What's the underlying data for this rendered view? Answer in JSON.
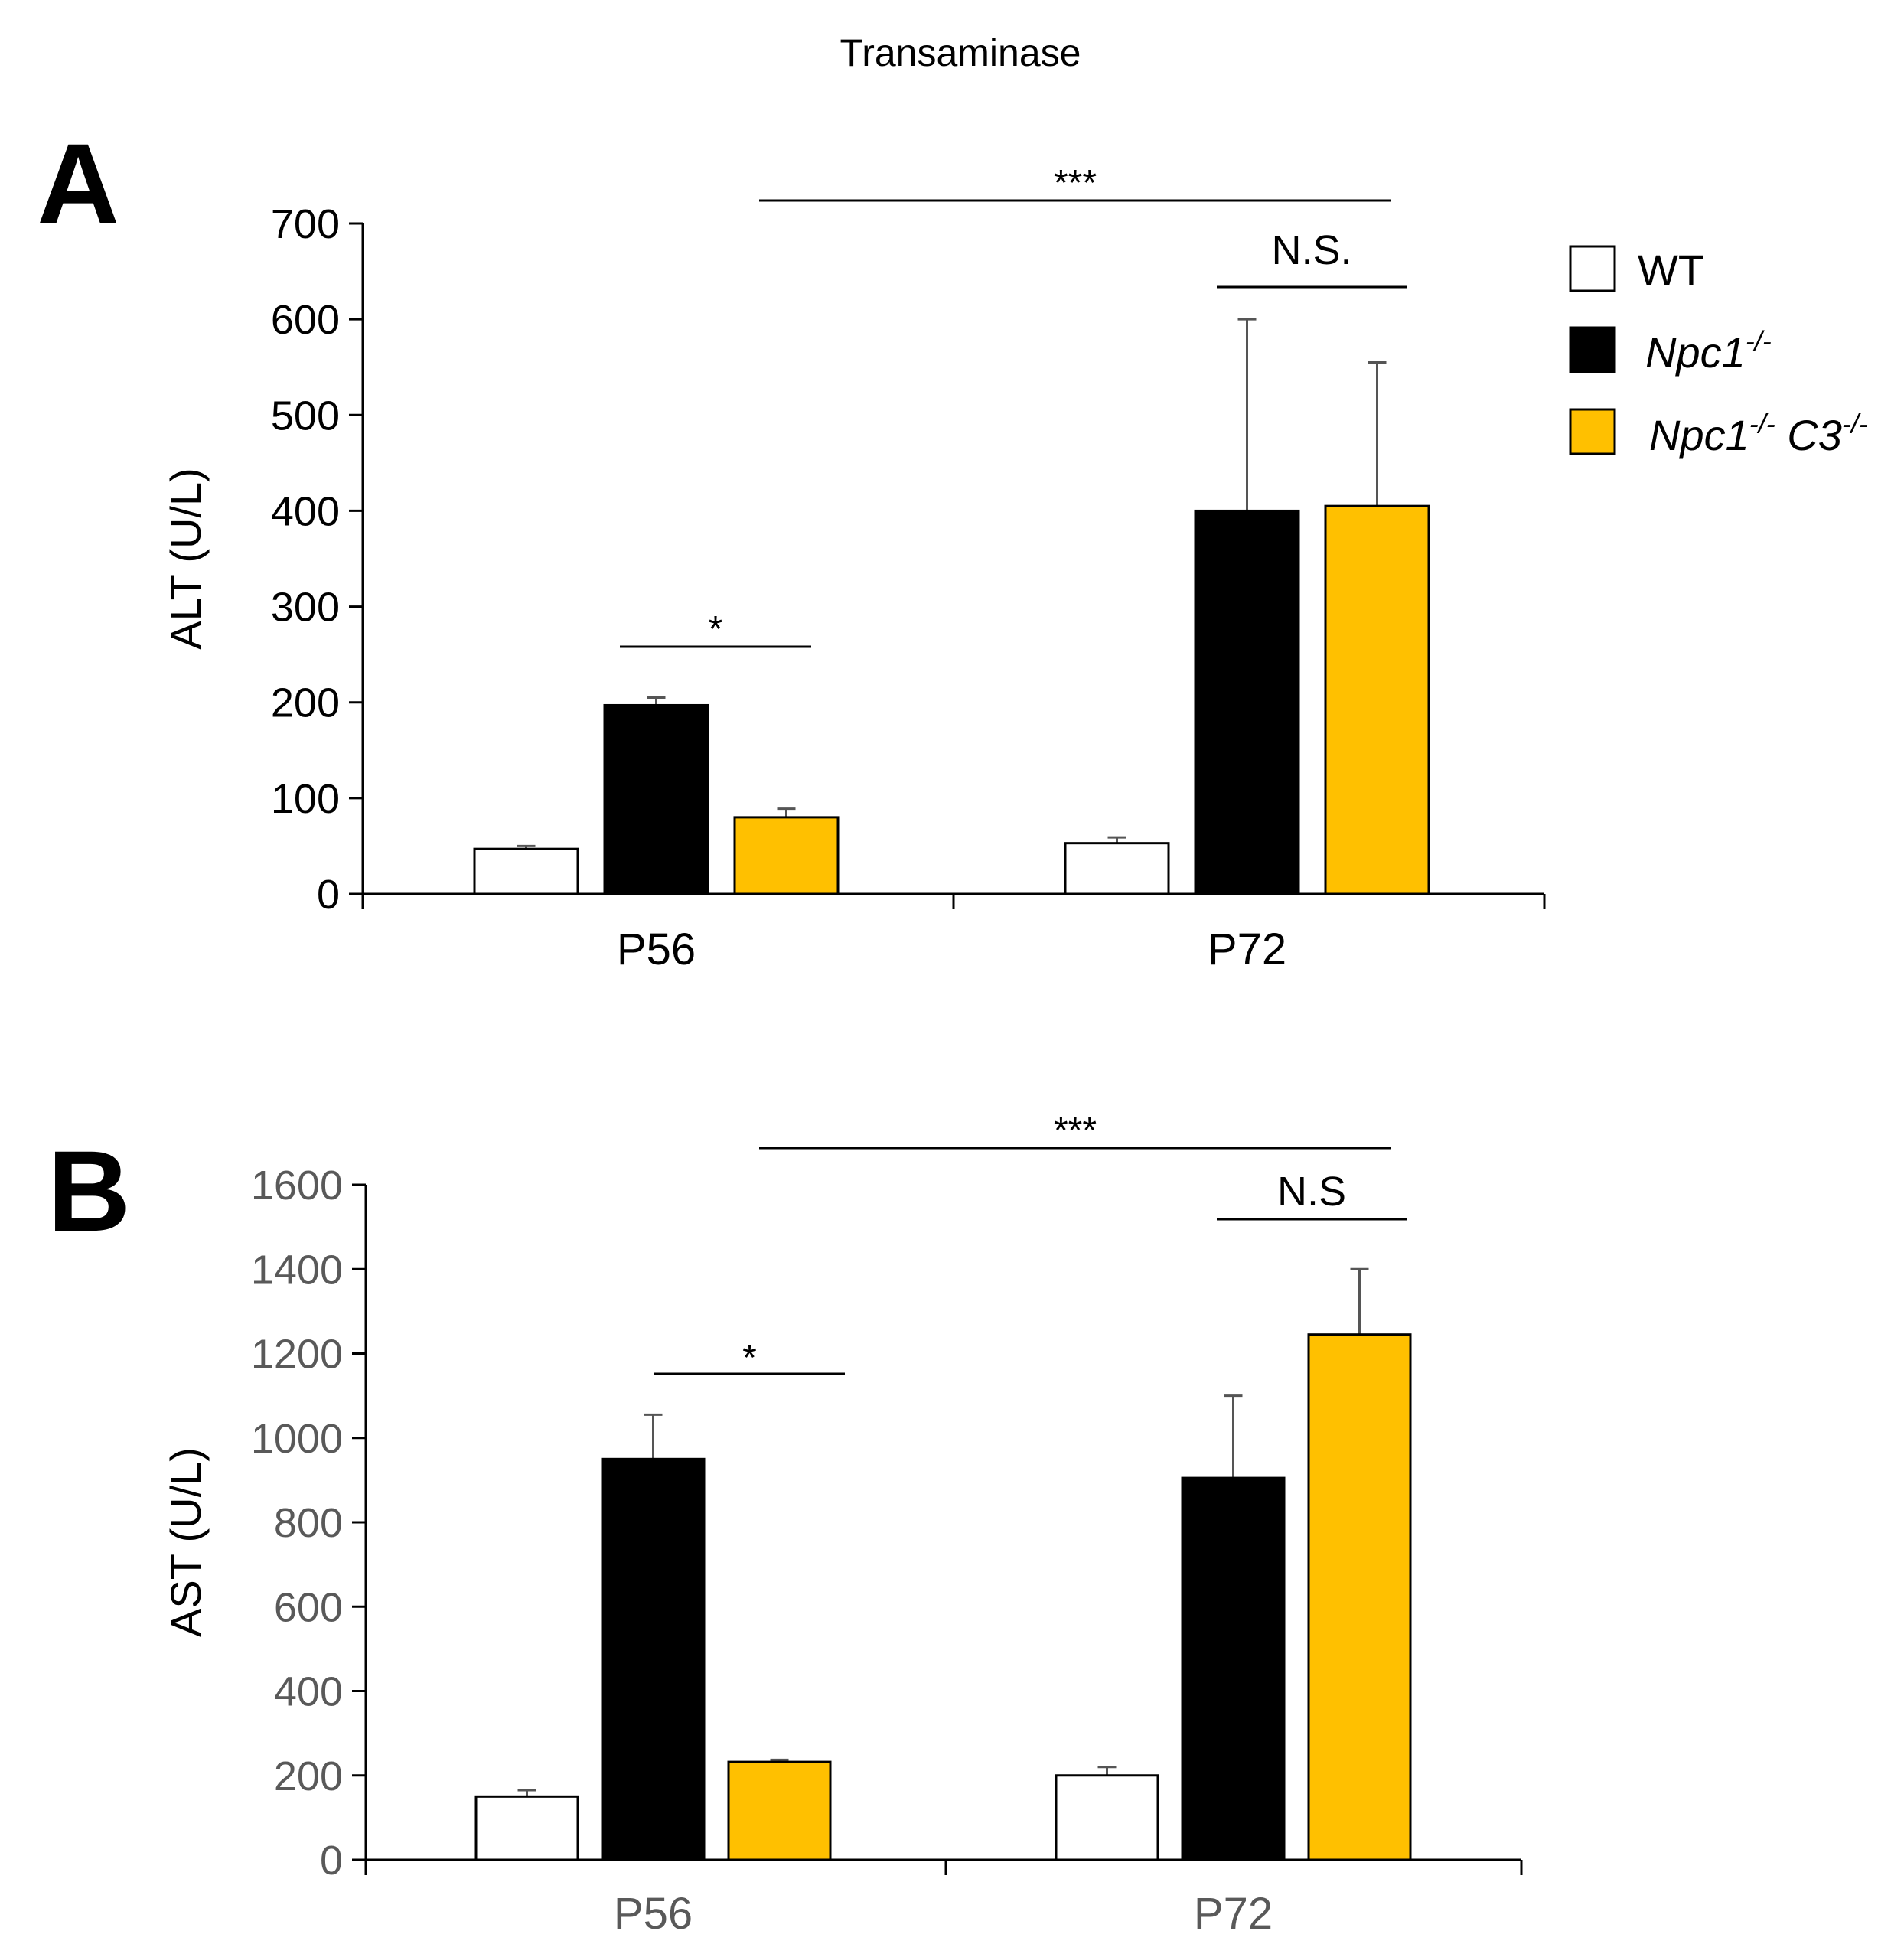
{
  "figure_title": "Transaminase",
  "colors": {
    "wt": "#ffffff",
    "npc1": "#000000",
    "npc1c3": "#ffc000",
    "axis": "#000000",
    "tick_label_b": "#595959"
  },
  "legend": [
    {
      "label_main": "WT",
      "label_sup": "",
      "label_main2": "",
      "label_sup2": "",
      "color": "#ffffff",
      "italic": false
    },
    {
      "label_main": "Npc1",
      "label_sup": "-/-",
      "label_main2": "",
      "label_sup2": "",
      "color": "#000000",
      "italic": true
    },
    {
      "label_main": "Npc1",
      "label_sup": "-/-",
      "label_main2": " C3",
      "label_sup2": "-/-",
      "color": "#ffc000",
      "italic": true
    }
  ],
  "chart_data": [
    {
      "type": "bar",
      "panel_label": "A",
      "categories": [
        "P56",
        "P72"
      ],
      "series": [
        {
          "name": "WT",
          "values": [
            47,
            53
          ],
          "errors": [
            3,
            6
          ]
        },
        {
          "name": "Npc1-/-",
          "values": [
            197,
            400
          ],
          "errors": [
            8,
            200
          ]
        },
        {
          "name": "Npc1-/- C3-/-",
          "values": [
            80,
            405
          ],
          "errors": [
            9,
            150
          ]
        }
      ],
      "ylabel": "ALT (U/L)",
      "xlabel": "",
      "ylim": [
        0,
        700
      ],
      "yticks": [
        "0",
        "100",
        "200",
        "300",
        "400",
        "500",
        "600",
        "700"
      ],
      "tick_values": [
        0,
        100,
        200,
        300,
        400,
        500,
        600,
        700
      ],
      "annotations": [
        {
          "text": "*",
          "from": "P56:Npc1-/-",
          "to": "P56:Npc1-/- C3-/-"
        },
        {
          "text": "N.S.",
          "from": "P72:Npc1-/-",
          "to": "P72:Npc1-/- C3-/-"
        },
        {
          "text": "***",
          "from": "P56:Npc1-/- C3-/-",
          "to": "P72:Npc1-/- C3-/-"
        }
      ]
    },
    {
      "type": "bar",
      "panel_label": "B",
      "categories": [
        "P56",
        "P72"
      ],
      "series": [
        {
          "name": "WT",
          "values": [
            150,
            200
          ],
          "errors": [
            15,
            20
          ]
        },
        {
          "name": "Npc1-/-",
          "values": [
            950,
            905
          ],
          "errors": [
            105,
            195
          ]
        },
        {
          "name": "Npc1-/- C3-/-",
          "values": [
            232,
            1245
          ],
          "errors": [
            5,
            155
          ]
        }
      ],
      "ylabel": "AST (U/L)",
      "xlabel": "",
      "ylim": [
        0,
        1600
      ],
      "yticks": [
        "0",
        "200",
        "400",
        "600",
        "800",
        "1000",
        "1200",
        "1400",
        "1600"
      ],
      "tick_values": [
        0,
        200,
        400,
        600,
        800,
        1000,
        1200,
        1400,
        1600
      ],
      "annotations": [
        {
          "text": "*",
          "from": "P56:Npc1-/-",
          "to": "P56:Npc1-/- C3-/-"
        },
        {
          "text": "N.S",
          "from": "P72:Npc1-/-",
          "to": "P72:Npc1-/- C3-/-"
        },
        {
          "text": "***",
          "from": "P56:Npc1-/- C3-/-",
          "to": "P72:Npc1-/- C3-/-"
        }
      ]
    }
  ]
}
